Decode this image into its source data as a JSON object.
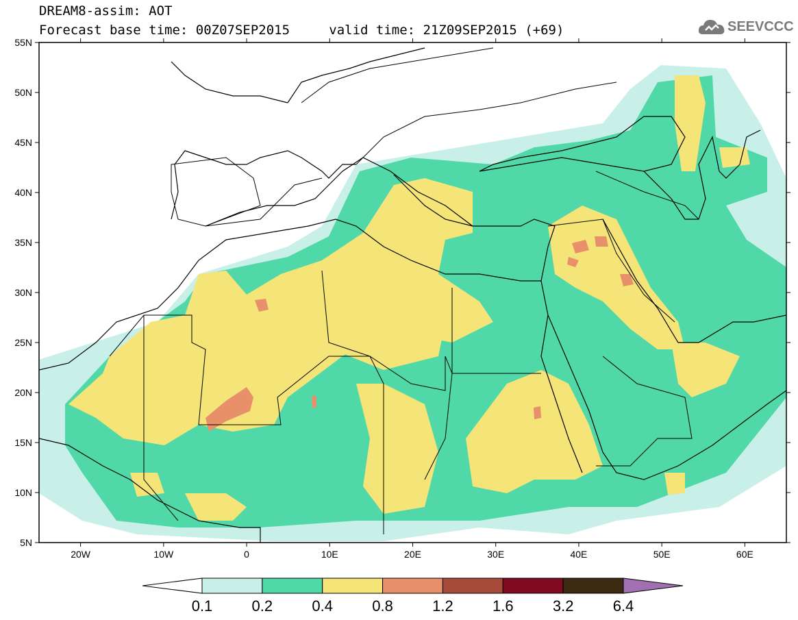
{
  "header": {
    "title": "DREAM8-assim: AOT",
    "base_time_label": "Forecast base time: 00Z07SEP2015",
    "valid_time_label": "valid time: 21Z09SEP2015 (+69)"
  },
  "logo": {
    "text": "SEEVCCC",
    "icon": "cloud-icon"
  },
  "map": {
    "lon_range": [
      -25,
      65
    ],
    "lat_range": [
      5,
      55
    ],
    "lat_ticks": [
      {
        "value": 55,
        "label": "55N"
      },
      {
        "value": 50,
        "label": "50N"
      },
      {
        "value": 45,
        "label": "45N"
      },
      {
        "value": 40,
        "label": "40N"
      },
      {
        "value": 35,
        "label": "35N"
      },
      {
        "value": 30,
        "label": "30N"
      },
      {
        "value": 25,
        "label": "25N"
      },
      {
        "value": 20,
        "label": "20N"
      },
      {
        "value": 15,
        "label": "15N"
      },
      {
        "value": 10,
        "label": "10N"
      },
      {
        "value": 5,
        "label": "5N"
      }
    ],
    "lon_ticks": [
      {
        "value": -20,
        "label": "20W"
      },
      {
        "value": -10,
        "label": "10W"
      },
      {
        "value": 0,
        "label": "0"
      },
      {
        "value": 10,
        "label": "10E"
      },
      {
        "value": 20,
        "label": "20E"
      },
      {
        "value": 30,
        "label": "30E"
      },
      {
        "value": 40,
        "label": "40E"
      },
      {
        "value": 50,
        "label": "50E"
      },
      {
        "value": 60,
        "label": "60E"
      }
    ]
  },
  "colorbar": {
    "colors": [
      "#ffffff",
      "#c8f0e8",
      "#50d8a8",
      "#f5e478",
      "#e8906a",
      "#a84a3a",
      "#800a20",
      "#3c2a12",
      "#a070b0"
    ],
    "labels": [
      "0.1",
      "0.2",
      "0.4",
      "0.8",
      "1.2",
      "1.6",
      "3.2",
      "6.4"
    ]
  }
}
